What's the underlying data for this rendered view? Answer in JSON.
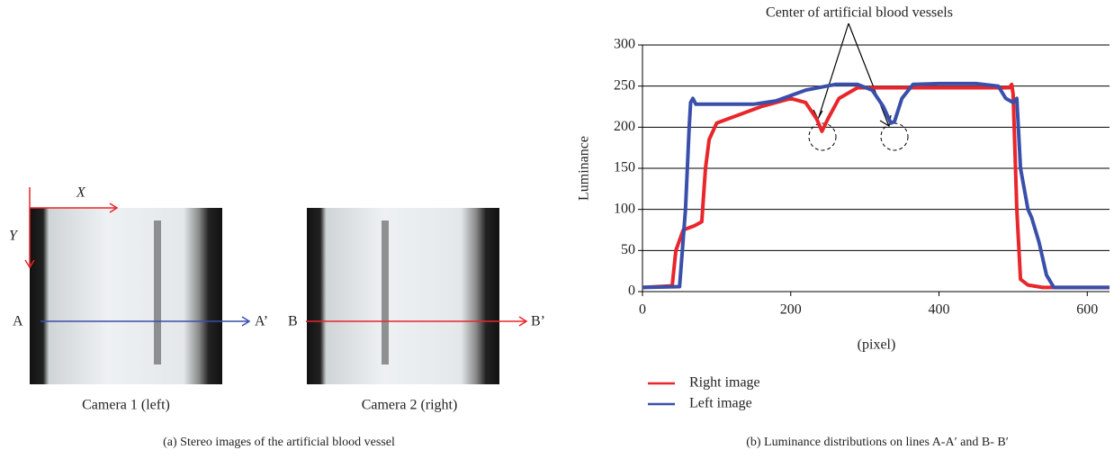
{
  "panel_a": {
    "x_label": "X",
    "y_label": "Y",
    "line_a_start": "A",
    "line_a_end": "A’",
    "line_b_start": "B",
    "line_b_end": "B’",
    "camera1": "Camera 1 (left)",
    "camera2": "Camera 2 (right)",
    "caption": "(a)  Stereo images of the artificial blood vessel"
  },
  "chart_data": {
    "type": "line",
    "annotation": "Center of artificial blood vessels",
    "y_label": "Luminance",
    "x_label": "(pixel)",
    "caption": "(b)  Luminance distributions on lines A-A′ and B- B′",
    "xlim": [
      0,
      630
    ],
    "ylim": [
      0,
      300
    ],
    "xticks": [
      0,
      200,
      400,
      600
    ],
    "yticks": [
      0,
      50,
      100,
      150,
      200,
      250,
      300
    ],
    "grid": true,
    "series": [
      {
        "name": "Right image",
        "color": "#e8262b",
        "x": [
          0,
          40,
          45,
          55,
          70,
          80,
          85,
          90,
          100,
          130,
          160,
          200,
          220,
          235,
          242,
          250,
          265,
          290,
          350,
          400,
          450,
          495,
          498,
          500,
          505,
          510,
          520,
          540,
          630
        ],
        "values": [
          5,
          7,
          50,
          75,
          80,
          85,
          150,
          185,
          205,
          215,
          225,
          235,
          230,
          210,
          195,
          210,
          235,
          248,
          248,
          248,
          248,
          248,
          252,
          240,
          100,
          15,
          8,
          5,
          5
        ]
      },
      {
        "name": "Left image",
        "color": "#3a4faa",
        "x": [
          0,
          50,
          58,
          63,
          65,
          68,
          72,
          100,
          150,
          180,
          220,
          260,
          290,
          310,
          325,
          335,
          340,
          350,
          365,
          400,
          450,
          480,
          490,
          500,
          505,
          510,
          520,
          525,
          535,
          545,
          555,
          630
        ],
        "values": [
          5,
          6,
          100,
          200,
          230,
          235,
          228,
          228,
          228,
          232,
          245,
          252,
          252,
          245,
          225,
          205,
          207,
          235,
          252,
          253,
          253,
          250,
          235,
          230,
          235,
          150,
          100,
          90,
          60,
          20,
          5,
          5
        ]
      }
    ]
  }
}
